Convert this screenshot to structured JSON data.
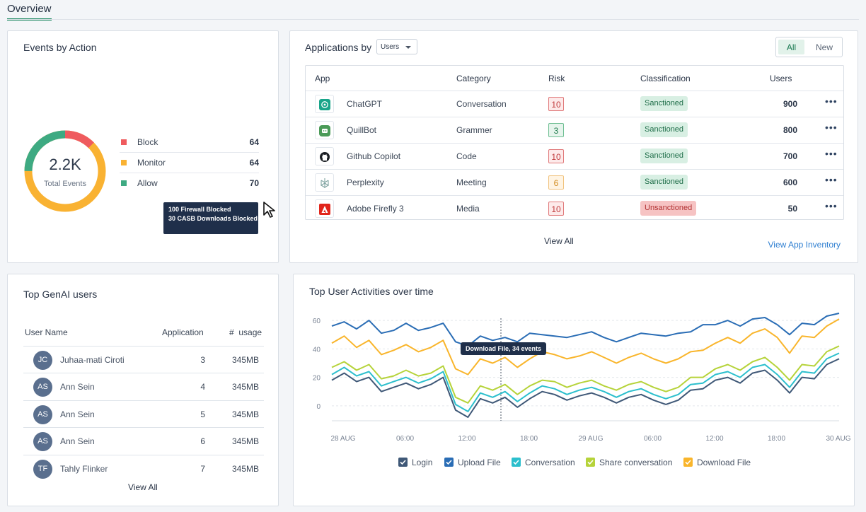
{
  "tabs": {
    "overview": "Overview"
  },
  "events": {
    "title": "Events by Action",
    "total_value": "2.2K",
    "total_label": "Total Events",
    "legend": [
      {
        "label": "Block",
        "count": "64",
        "color": "#ef5b5e"
      },
      {
        "label": "Monitor",
        "count": "64",
        "color": "#f9b233"
      },
      {
        "label": "Allow",
        "count": "70",
        "color": "#3eaa82"
      }
    ],
    "tooltip_line1": "100 Firewall Blocked",
    "tooltip_line2": "30 CASB Downloads Blocked"
  },
  "apps": {
    "title": "Applications by",
    "select_value": "Users",
    "toggle_all": "All",
    "toggle_new": "New",
    "columns": [
      "App",
      "Category",
      "Risk",
      "Classification",
      "Users"
    ],
    "rows": [
      {
        "name": "ChatGPT",
        "category": "Conversation",
        "risk": "10",
        "risk_level": "high",
        "classification": "Sanctioned",
        "users": "900",
        "icon": "chatgpt-icon"
      },
      {
        "name": "QuillBot",
        "category": "Grammer",
        "risk": "3",
        "risk_level": "low",
        "classification": "Sanctioned",
        "users": "800",
        "icon": "quillbot-icon"
      },
      {
        "name": "Github Copilot",
        "category": "Code",
        "risk": "10",
        "risk_level": "high",
        "classification": "Sanctioned",
        "users": "700",
        "icon": "github-icon"
      },
      {
        "name": "Perplexity",
        "category": "Meeting",
        "risk": "6",
        "risk_level": "med",
        "classification": "Sanctioned",
        "users": "600",
        "icon": "perplexity-icon"
      },
      {
        "name": "Adobe Firefly 3",
        "category": "Media",
        "risk": "10",
        "risk_level": "high",
        "classification": "Unsanctioned",
        "users": "50",
        "icon": "adobe-icon"
      }
    ],
    "view_all": "View All",
    "view_inventory": "View App Inventory"
  },
  "genai": {
    "title": "Top GenAI users",
    "columns": {
      "user": "User Name",
      "application": "Application",
      "usage": "#  usage"
    },
    "rows": [
      {
        "initials": "JC",
        "name": "Juhaa-mati Ciroti",
        "application": "3",
        "usage": "345MB"
      },
      {
        "initials": "AS",
        "name": "Ann Sein",
        "application": "4",
        "usage": "345MB"
      },
      {
        "initials": "AS",
        "name": "Ann Sein",
        "application": "5",
        "usage": "345MB"
      },
      {
        "initials": "AS",
        "name": "Ann Sein",
        "application": "6",
        "usage": "345MB"
      },
      {
        "initials": "TF",
        "name": "Tahly Flinker",
        "application": "7",
        "usage": "345MB"
      }
    ],
    "view_all": "View All"
  },
  "activity": {
    "title": "Top User Activities over time",
    "tooltip": "Download File, 34 events"
  },
  "chart_data": {
    "type": "line",
    "title": "Top User Activities over time",
    "x_ticks": [
      "28 AUG",
      "06:00",
      "12:00",
      "18:00",
      "29 AUG",
      "06:00",
      "12:00",
      "18:00",
      "30 AUG"
    ],
    "y_ticks": [
      "60",
      "40",
      "20",
      "0"
    ],
    "ylim": [
      -10,
      65
    ],
    "grid": true,
    "legend_position": "bottom",
    "series": [
      {
        "name": "Login",
        "color": "#3f5877",
        "values": [
          18,
          23,
          17,
          20,
          10,
          13,
          16,
          12,
          15,
          20,
          -3,
          -8,
          5,
          2,
          6,
          -1,
          5,
          10,
          8,
          4,
          7,
          9,
          6,
          2,
          6,
          8,
          4,
          1,
          4,
          11,
          12,
          18,
          20,
          16,
          23,
          25,
          18,
          9,
          20,
          19,
          29,
          33
        ]
      },
      {
        "name": "Upload File",
        "color": "#2a6db5",
        "values": [
          56,
          59,
          54,
          60,
          51,
          53,
          58,
          53,
          55,
          58,
          45,
          42,
          49,
          46,
          48,
          45,
          51,
          50,
          49,
          48,
          50,
          52,
          48,
          45,
          48,
          51,
          50,
          49,
          51,
          52,
          57,
          57,
          60,
          56,
          61,
          62,
          57,
          50,
          58,
          57,
          63,
          65
        ]
      },
      {
        "name": "Conversation",
        "color": "#2cbfcd",
        "values": [
          22,
          27,
          21,
          24,
          14,
          17,
          20,
          16,
          19,
          24,
          1,
          -4,
          9,
          6,
          10,
          3,
          9,
          14,
          12,
          8,
          11,
          13,
          10,
          6,
          10,
          12,
          8,
          5,
          8,
          15,
          16,
          22,
          24,
          20,
          27,
          29,
          22,
          13,
          24,
          23,
          33,
          37
        ]
      },
      {
        "name": "Share conversation",
        "color": "#b6d33a",
        "values": [
          27,
          31,
          25,
          29,
          19,
          21,
          25,
          21,
          23,
          28,
          6,
          2,
          14,
          11,
          15,
          8,
          14,
          18,
          17,
          13,
          16,
          18,
          14,
          11,
          15,
          17,
          13,
          10,
          13,
          20,
          20,
          26,
          29,
          25,
          31,
          34,
          27,
          18,
          29,
          28,
          38,
          42
        ]
      },
      {
        "name": "Download File",
        "color": "#f9b52b",
        "values": [
          44,
          49,
          41,
          46,
          36,
          39,
          43,
          38,
          41,
          46,
          26,
          22,
          33,
          30,
          34,
          27,
          33,
          38,
          36,
          33,
          35,
          38,
          34,
          30,
          34,
          37,
          33,
          30,
          33,
          38,
          39,
          44,
          48,
          44,
          51,
          54,
          48,
          37,
          49,
          48,
          56,
          61
        ]
      }
    ]
  }
}
